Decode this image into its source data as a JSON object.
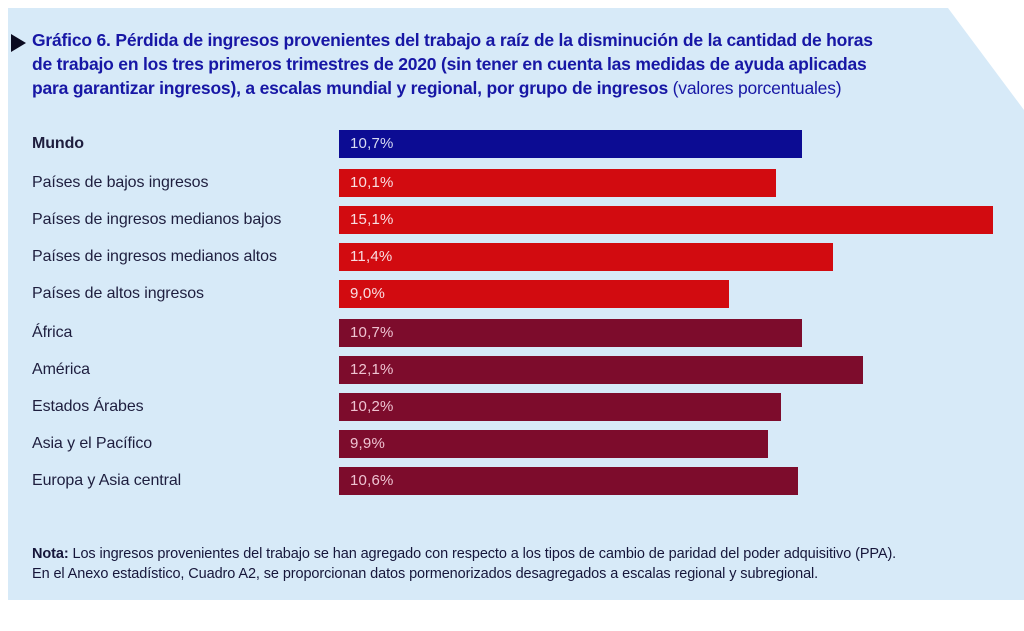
{
  "header": {
    "line1": "Gráfico 6.  Pérdida de ingresos provenientes del trabajo a raíz de la disminución de la cantidad de horas",
    "line2": "de trabajo en los tres primeros trimestres de 2020 (sin tener en cuenta las medidas de ayuda aplicadas",
    "line3_bold": "para garantizar ingresos), a escalas mundial y regional, por grupo de ingresos ",
    "line3_normal": "(valores porcentuales)"
  },
  "note": {
    "label": "Nota:",
    "line1_rest": " Los ingresos provenientes del trabajo se han agregado con respecto a los tipos de cambio de paridad del poder adquisitivo (PPA).",
    "line2": "En el Anexo estadístico, Cuadro A2, se proporcionan datos pormenorizados desagregados a escalas regional y subregional."
  },
  "colors": {
    "panel_background": "#d7eaf8",
    "title_blue": "#1717a5",
    "label_dark": "#1e1e3e",
    "world_bar": "#0c0c93",
    "income_bar": "#d20b10",
    "region_bar": "#7d0c2c",
    "value_text_world": "#d8dcf2",
    "value_text_income": "#f8dee2",
    "value_text_region": "#eec3d1"
  },
  "chart_data": {
    "type": "bar",
    "orientation": "horizontal",
    "title": "Gráfico 6. Pérdida de ingresos provenientes del trabajo a raíz de la disminución de la cantidad de horas de trabajo en los tres primeros trimestres de 2020 (sin tener en cuenta las medidas de ayuda aplicadas para garantizar ingresos), a escalas mundial y regional, por grupo de ingresos (valores porcentuales)",
    "unit": "%",
    "xlim": [
      0,
      15.8
    ],
    "grid": false,
    "legend": false,
    "categories": [
      "Mundo",
      "Países de bajos ingresos",
      "Países de ingresos medianos bajos",
      "Países de ingresos medianos altos",
      "Países de altos ingresos",
      "África",
      "América",
      "Estados Árabes",
      "Asia y el Pacífico",
      "Europa y Asia central"
    ],
    "values": [
      10.7,
      10.1,
      15.1,
      11.4,
      9.0,
      10.7,
      12.1,
      10.2,
      9.9,
      10.6
    ],
    "items": [
      {
        "label": "Mundo",
        "value": 10.7,
        "value_label": "10,7%",
        "group": "world",
        "bold": true,
        "gap_before": false
      },
      {
        "label": "Países de bajos ingresos",
        "value": 10.1,
        "value_label": "10,1%",
        "group": "income",
        "bold": false,
        "gap_before": true
      },
      {
        "label": "Países de ingresos medianos bajos",
        "value": 15.1,
        "value_label": "15,1%",
        "group": "income",
        "bold": false,
        "gap_before": false
      },
      {
        "label": "Países de ingresos medianos altos",
        "value": 11.4,
        "value_label": "11,4%",
        "group": "income",
        "bold": false,
        "gap_before": false
      },
      {
        "label": "Países de altos ingresos",
        "value": 9.0,
        "value_label": "9,0%",
        "group": "income",
        "bold": false,
        "gap_before": false
      },
      {
        "label": "África",
        "value": 10.7,
        "value_label": "10,7%",
        "group": "region",
        "bold": false,
        "gap_before": true
      },
      {
        "label": "América",
        "value": 12.1,
        "value_label": "12,1%",
        "group": "region",
        "bold": false,
        "gap_before": false
      },
      {
        "label": "Estados Árabes",
        "value": 10.2,
        "value_label": "10,2%",
        "group": "region",
        "bold": false,
        "gap_before": false
      },
      {
        "label": "Asia y el Pacífico",
        "value": 9.9,
        "value_label": "9,9%",
        "group": "region",
        "bold": false,
        "gap_before": false
      },
      {
        "label": "Europa y Asia central",
        "value": 10.6,
        "value_label": "10,6%",
        "group": "region",
        "bold": false,
        "gap_before": false
      }
    ]
  }
}
